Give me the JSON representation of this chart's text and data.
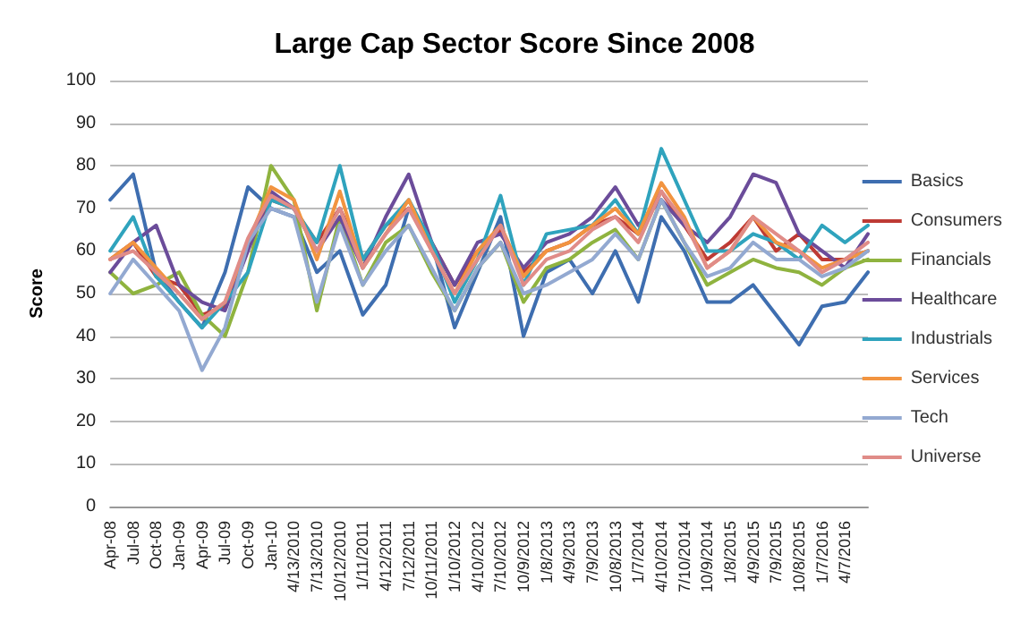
{
  "chart_data": {
    "type": "line",
    "title": "Large Cap Sector Score Since 2008",
    "ylabel": "Score",
    "categories": [
      "Apr-08",
      "Jul-08",
      "Oct-08",
      "Jan-09",
      "Apr-09",
      "Jul-09",
      "Oct-09",
      "Jan-10",
      "4/13/2010",
      "7/13/2010",
      "10/12/2010",
      "1/11/2011",
      "4/12/2011",
      "7/12/2011",
      "10/11/2011",
      "1/10/2012",
      "4/10/2012",
      "7/10/2012",
      "10/9/2012",
      "1/8/2013",
      "4/9/2013",
      "7/9/2013",
      "10/8/2013",
      "1/7/2014",
      "4/10/2014",
      "7/10/2014",
      "10/9/2014",
      "1/8/2015",
      "4/9/2015",
      "7/9/2015",
      "10/8/2015",
      "1/7/2016",
      "4/7/2016",
      null
    ],
    "series": [
      {
        "name": "Basics",
        "color": "#3e6eb0",
        "values": [
          72,
          78,
          55,
          48,
          42,
          55,
          75,
          70,
          68,
          55,
          60,
          45,
          52,
          70,
          62,
          42,
          55,
          68,
          40,
          55,
          58,
          50,
          60,
          48,
          68,
          60,
          48,
          48,
          52,
          45,
          38,
          47,
          48,
          55
        ]
      },
      {
        "name": "Consumers",
        "color": "#be3a34",
        "values": [
          58,
          62,
          54,
          52,
          45,
          47,
          62,
          72,
          70,
          62,
          70,
          58,
          66,
          70,
          62,
          52,
          60,
          65,
          55,
          60,
          62,
          66,
          68,
          64,
          74,
          66,
          58,
          62,
          68,
          60,
          64,
          58,
          58,
          60
        ]
      },
      {
        "name": "Financials",
        "color": "#8fb33f",
        "values": [
          55,
          50,
          52,
          55,
          45,
          40,
          55,
          80,
          72,
          46,
          68,
          52,
          62,
          66,
          55,
          46,
          56,
          62,
          48,
          56,
          58,
          62,
          65,
          58,
          72,
          62,
          52,
          55,
          58,
          56,
          55,
          52,
          56,
          58
        ]
      },
      {
        "name": "Healthcare",
        "color": "#6b4c9a",
        "values": [
          55,
          62,
          66,
          52,
          48,
          46,
          60,
          74,
          70,
          60,
          68,
          56,
          68,
          78,
          62,
          52,
          62,
          64,
          56,
          62,
          64,
          68,
          75,
          66,
          72,
          66,
          62,
          68,
          78,
          76,
          64,
          60,
          56,
          64
        ]
      },
      {
        "name": "Industrials",
        "color": "#2fa3bd",
        "values": [
          60,
          68,
          54,
          48,
          42,
          48,
          55,
          72,
          70,
          62,
          80,
          58,
          66,
          72,
          62,
          48,
          58,
          73,
          52,
          64,
          65,
          66,
          72,
          64,
          84,
          72,
          60,
          60,
          64,
          62,
          58,
          66,
          62,
          66
        ]
      },
      {
        "name": "Services",
        "color": "#f29440",
        "values": [
          58,
          62,
          56,
          50,
          44,
          48,
          62,
          75,
          72,
          58,
          74,
          56,
          64,
          72,
          60,
          50,
          60,
          66,
          54,
          60,
          62,
          66,
          70,
          64,
          76,
          68,
          56,
          60,
          68,
          62,
          60,
          56,
          58,
          60
        ]
      },
      {
        "name": "Tech",
        "color": "#93a9d1",
        "values": [
          50,
          58,
          52,
          46,
          32,
          42,
          62,
          70,
          68,
          48,
          66,
          52,
          60,
          66,
          56,
          46,
          56,
          62,
          50,
          52,
          55,
          58,
          64,
          58,
          72,
          62,
          54,
          56,
          62,
          58,
          58,
          54,
          56,
          60
        ]
      },
      {
        "name": "Universe",
        "color": "#e08c88",
        "values": [
          58,
          60,
          55,
          50,
          44,
          48,
          63,
          73,
          70,
          60,
          70,
          56,
          64,
          70,
          60,
          50,
          58,
          66,
          52,
          58,
          60,
          65,
          68,
          62,
          74,
          67,
          56,
          60,
          68,
          64,
          60,
          55,
          58,
          62
        ]
      }
    ],
    "ylim": [
      0,
      100
    ],
    "yticks": [
      0,
      10,
      20,
      30,
      40,
      50,
      60,
      70,
      80,
      90,
      100
    ],
    "grid": "y",
    "legend": "right",
    "marker": "none",
    "line_style": "solid"
  }
}
